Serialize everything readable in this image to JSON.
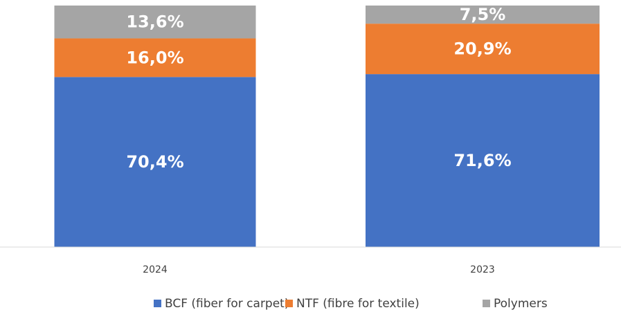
{
  "chart_data": {
    "type": "stacked_bar",
    "categories": [
      "2024",
      "2023"
    ],
    "series": [
      {
        "name": "BCF (fiber for carpet)",
        "color": "#4472c4",
        "values": [
          70.4,
          71.6
        ],
        "value_labels": [
          "70,4%",
          "71,6%"
        ]
      },
      {
        "name": "NTF (fibre for textile)",
        "color": "#ed7d31",
        "values": [
          16.0,
          20.9
        ],
        "value_labels": [
          "16,0%",
          "20,9%"
        ]
      },
      {
        "name": "Polymers",
        "color": "#a5a5a5",
        "values": [
          13.6,
          7.5
        ],
        "value_labels": [
          "13,6%",
          "7,5%"
        ]
      }
    ],
    "ylim": [
      0,
      100
    ],
    "legend": "bottom"
  }
}
